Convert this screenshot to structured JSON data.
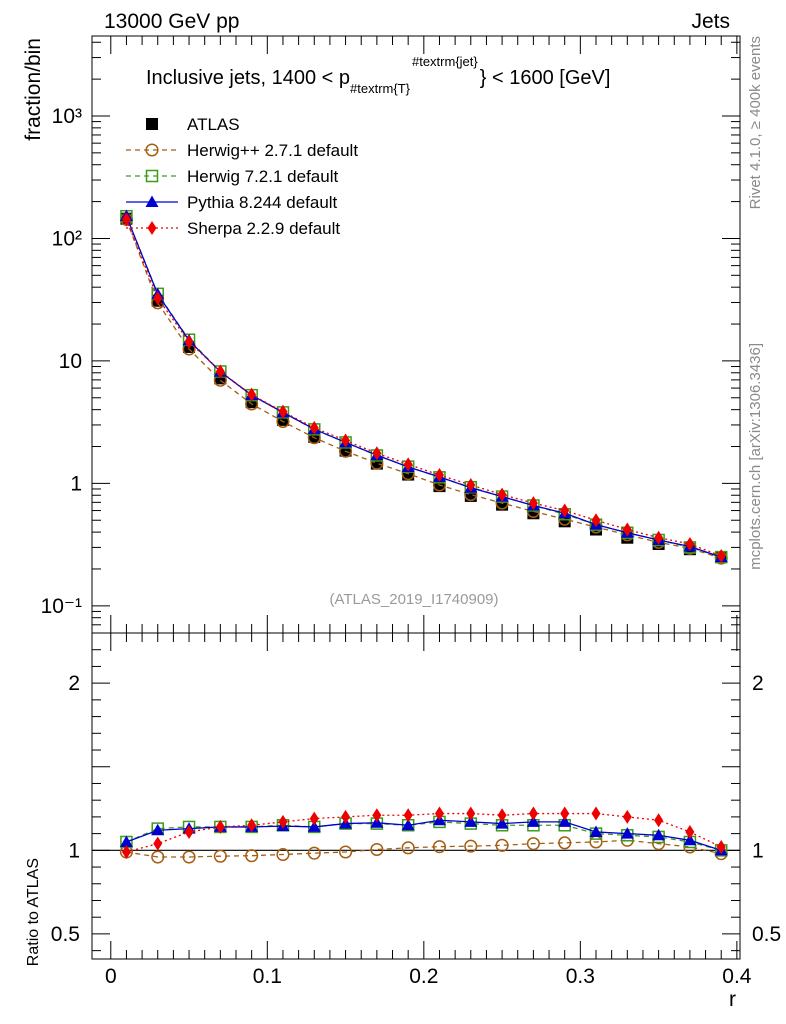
{
  "header": {
    "energy": "13000 GeV pp",
    "process": "Jets",
    "rivet": "Rivet 4.1.0, ≥ 400k events",
    "mcplots": "mcplots.cern.ch [arXiv:1306.3436]"
  },
  "chart_data": [
    {
      "type": "scatter",
      "panel": "main",
      "title_main": "Inclusive jets, 1400 < p",
      "title_sub": "#textrm{T}",
      "title_sup": "#textrm{jet}",
      "title_tail": "} < 1600 [GeV]",
      "ylabel": "fraction/bin",
      "xlabel": "",
      "yscale": "log",
      "ylim": [
        0.06,
        4500
      ],
      "xlim": [
        -0.012,
        0.402
      ],
      "ytick_labels": [
        "10⁻¹",
        "1",
        "10",
        "10²",
        "10³"
      ],
      "watermark": "(ATLAS_2019_I1740909)",
      "x": [
        0.01,
        0.03,
        0.05,
        0.07,
        0.09,
        0.11,
        0.13,
        0.15,
        0.17,
        0.19,
        0.21,
        0.23,
        0.25,
        0.27,
        0.29,
        0.31,
        0.33,
        0.35,
        0.37,
        0.39
      ],
      "series": [
        {
          "name": "ATLAS",
          "color": "#000000",
          "marker": "square-filled",
          "line": "none",
          "values": [
            145,
            31,
            13.0,
            7.2,
            4.6,
            3.3,
            2.4,
            1.85,
            1.45,
            1.18,
            0.95,
            0.79,
            0.67,
            0.57,
            0.49,
            0.42,
            0.36,
            0.32,
            0.29,
            0.25
          ]
        },
        {
          "name": "Herwig++ 2.7.1 default",
          "color": "#a55d10",
          "marker": "circle-open",
          "line": "dashed",
          "values": [
            143,
            29.8,
            12.5,
            6.95,
            4.45,
            3.2,
            2.36,
            1.83,
            1.46,
            1.2,
            0.97,
            0.81,
            0.69,
            0.59,
            0.51,
            0.44,
            0.38,
            0.33,
            0.295,
            0.245
          ]
        },
        {
          "name": "Herwig 7.2.1 default",
          "color": "#3e9a1c",
          "marker": "square-open",
          "line": "dashed",
          "values": [
            152,
            35.3,
            14.9,
            8.2,
            5.25,
            3.8,
            2.76,
            2.16,
            1.69,
            1.37,
            1.12,
            0.93,
            0.78,
            0.66,
            0.56,
            0.46,
            0.395,
            0.345,
            0.3,
            0.25
          ]
        },
        {
          "name": "Pythia 8.244 default",
          "color": "#0000d0",
          "marker": "triangle-filled",
          "line": "solid",
          "values": [
            152,
            35.0,
            14.7,
            8.15,
            5.25,
            3.8,
            2.77,
            2.16,
            1.7,
            1.36,
            1.13,
            0.92,
            0.78,
            0.66,
            0.57,
            0.46,
            0.395,
            0.345,
            0.305,
            0.25
          ]
        },
        {
          "name": "Sherpa 2.2.9 default",
          "color": "#ee0000",
          "marker": "diamond-filled",
          "line": "dotted",
          "values": [
            143,
            32.5,
            14.3,
            8.2,
            5.3,
            3.85,
            2.84,
            2.24,
            1.76,
            1.43,
            1.17,
            0.97,
            0.81,
            0.69,
            0.6,
            0.5,
            0.42,
            0.36,
            0.32,
            0.255
          ]
        }
      ]
    },
    {
      "type": "scatter",
      "panel": "ratio",
      "ylabel": "Ratio to ATLAS",
      "xlabel": "r",
      "ylim": [
        0.35,
        2.3
      ],
      "xlim": [
        -0.012,
        0.402
      ],
      "reference_line": 1,
      "yticks": [
        0.5,
        1,
        2
      ],
      "ytick_labels": [
        "0.5",
        "1",
        "2"
      ],
      "xticks": [
        0,
        0.1,
        0.2,
        0.3,
        0.4
      ],
      "xtick_labels": [
        "0",
        "0.1",
        "0.2",
        "0.3",
        "0.4"
      ],
      "x": [
        0.01,
        0.03,
        0.05,
        0.07,
        0.09,
        0.11,
        0.13,
        0.15,
        0.17,
        0.19,
        0.21,
        0.23,
        0.25,
        0.27,
        0.29,
        0.31,
        0.33,
        0.35,
        0.37,
        0.39
      ],
      "series": [
        {
          "name": "Herwig++ 2.7.1 default",
          "color": "#a55d10",
          "marker": "circle-open",
          "line": "dashed",
          "values": [
            0.99,
            0.96,
            0.96,
            0.965,
            0.968,
            0.975,
            0.983,
            0.99,
            1.005,
            1.015,
            1.022,
            1.025,
            1.03,
            1.04,
            1.045,
            1.05,
            1.06,
            1.04,
            1.02,
            0.98
          ]
        },
        {
          "name": "Herwig 7.2.1 default",
          "color": "#3e9a1c",
          "marker": "square-open",
          "line": "dashed",
          "values": [
            1.05,
            1.13,
            1.14,
            1.14,
            1.14,
            1.15,
            1.14,
            1.16,
            1.16,
            1.15,
            1.17,
            1.16,
            1.15,
            1.15,
            1.15,
            1.1,
            1.09,
            1.08,
            1.05,
            1.0
          ]
        },
        {
          "name": "Pythia 8.244 default",
          "color": "#0000d0",
          "marker": "triangle-filled",
          "line": "solid",
          "values": [
            1.05,
            1.12,
            1.13,
            1.14,
            1.14,
            1.145,
            1.14,
            1.16,
            1.165,
            1.15,
            1.18,
            1.17,
            1.16,
            1.17,
            1.17,
            1.11,
            1.1,
            1.09,
            1.06,
            1.0
          ]
        },
        {
          "name": "Sherpa 2.2.9 default",
          "color": "#ee0000",
          "marker": "diamond-filled",
          "line": "dotted",
          "values": [
            0.99,
            1.04,
            1.11,
            1.14,
            1.15,
            1.17,
            1.19,
            1.2,
            1.21,
            1.21,
            1.22,
            1.22,
            1.21,
            1.22,
            1.22,
            1.22,
            1.2,
            1.18,
            1.11,
            1.02
          ]
        }
      ]
    }
  ]
}
